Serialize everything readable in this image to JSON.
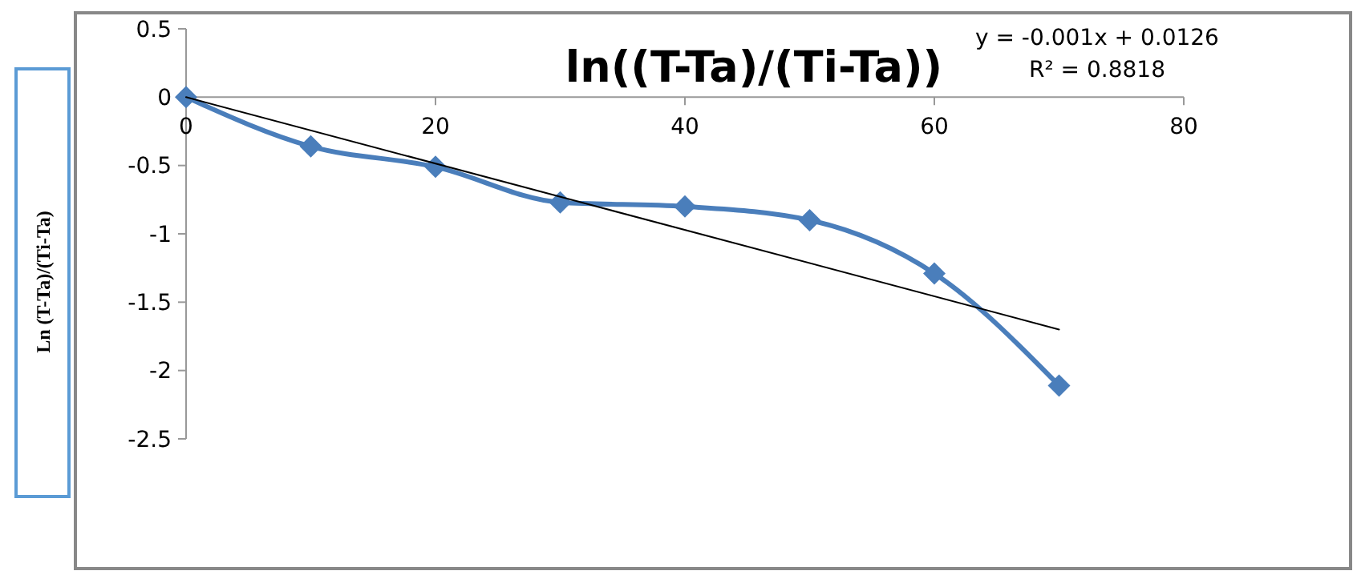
{
  "chart_data": {
    "type": "line",
    "title": "ln((T-Ta)/(Ti-Ta))",
    "ylabel": "Ln (T-Ta)/(Ti-Ta)",
    "annotations": [
      "y = -0.001x + 0.0126",
      "R² = 0.8818"
    ],
    "xlim": [
      0,
      80
    ],
    "xticks": [
      0,
      20,
      40,
      60,
      80
    ],
    "ylim": [
      -2.5,
      0.5
    ],
    "yticks": [
      0.5,
      0,
      -0.5,
      -1,
      -1.5,
      -2,
      -2.5
    ],
    "grid": false,
    "series": [
      {
        "x": [
          0,
          10,
          20,
          30,
          40,
          50,
          60,
          70
        ],
        "values": [
          0,
          -0.36,
          -0.51,
          -0.77,
          -0.8,
          -0.9,
          -1.29,
          -2.11
        ],
        "color": "#4a7ebb",
        "marker": "diamond",
        "line_style": "solid"
      },
      {
        "x": [
          0,
          70
        ],
        "values": [
          0,
          -1.7
        ],
        "color": "#000000",
        "marker": "none",
        "line_style": "solid"
      }
    ]
  }
}
